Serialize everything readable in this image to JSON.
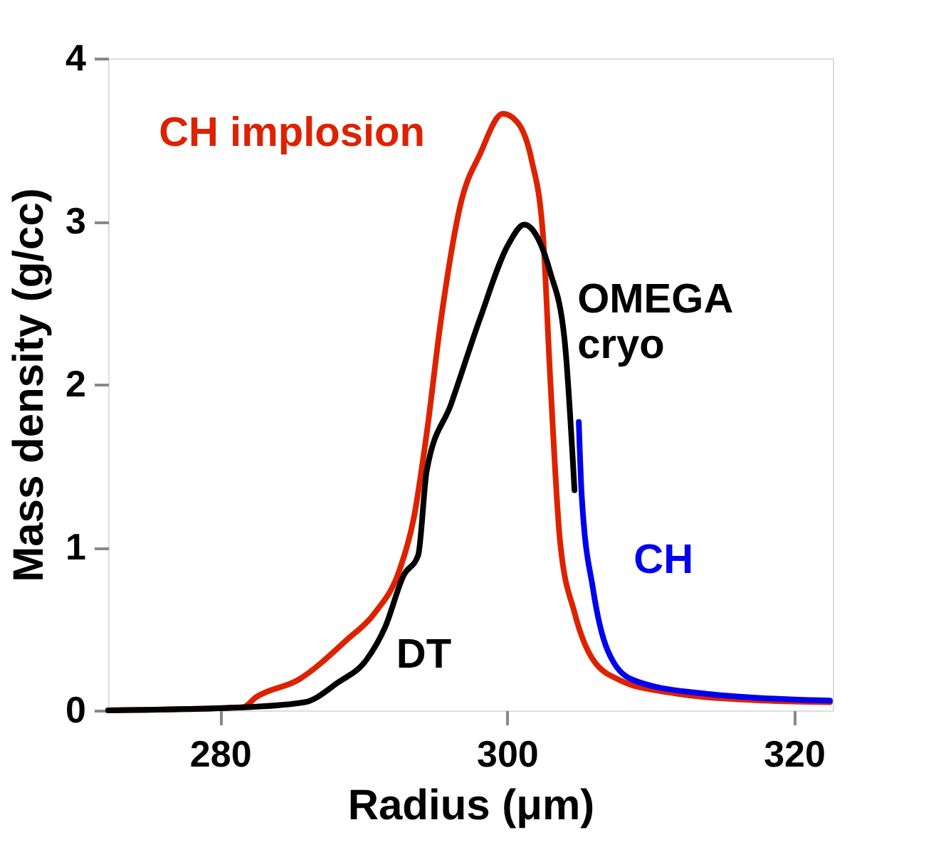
{
  "chart_data": {
    "type": "line",
    "xlabel": "Radius (μm)",
    "ylabel": "Mass density (g/cc)",
    "xlim": [
      272.2,
      322.7
    ],
    "xticks": [
      280,
      300,
      320
    ],
    "ylim": [
      0,
      4
    ],
    "yticks": [
      0,
      1,
      2,
      3,
      4
    ],
    "grid": false,
    "legend": false,
    "line_style": "solid",
    "marker": "none",
    "series": [
      {
        "name": "CH implosion",
        "color": "#dd2200",
        "x": [
          272.2,
          281.6,
          282.5,
          285.5,
          288.8,
          290.8,
          292.5,
          293.5,
          294.4,
          295.4,
          296.8,
          298.1,
          299.7,
          300.7,
          301.7,
          302.5,
          303.0,
          303.7,
          304.7,
          306.0,
          308.0,
          311.3,
          317.9,
          322.5
        ],
        "values": [
          0.0,
          0.02,
          0.08,
          0.19,
          0.43,
          0.6,
          0.86,
          1.18,
          1.7,
          2.4,
          3.12,
          3.41,
          3.66,
          3.61,
          3.38,
          2.92,
          2.05,
          1.03,
          0.6,
          0.31,
          0.18,
          0.11,
          0.06,
          0.05
        ]
      },
      {
        "name": "DT",
        "color": "#000000",
        "x": [
          272.2,
          281.9,
          285.9,
          288.2,
          290.2,
          291.5,
          292.8,
          293.8,
          294.4,
          296.1,
          298.1,
          300.1,
          301.2,
          302.0,
          303.0,
          304.0,
          304.7
        ],
        "values": [
          0.0,
          0.02,
          0.05,
          0.17,
          0.31,
          0.51,
          0.83,
          0.95,
          1.47,
          1.88,
          2.4,
          2.86,
          2.98,
          2.92,
          2.69,
          2.28,
          1.35
        ]
      },
      {
        "name": "CH",
        "color": "#0000ee",
        "x": [
          305.0,
          305.2,
          306.0,
          307.0,
          308.7,
          313.0,
          322.5
        ],
        "values": [
          1.77,
          1.32,
          0.74,
          0.37,
          0.19,
          0.11,
          0.06
        ]
      }
    ],
    "annotations": [
      "OMEGA cryo"
    ]
  }
}
